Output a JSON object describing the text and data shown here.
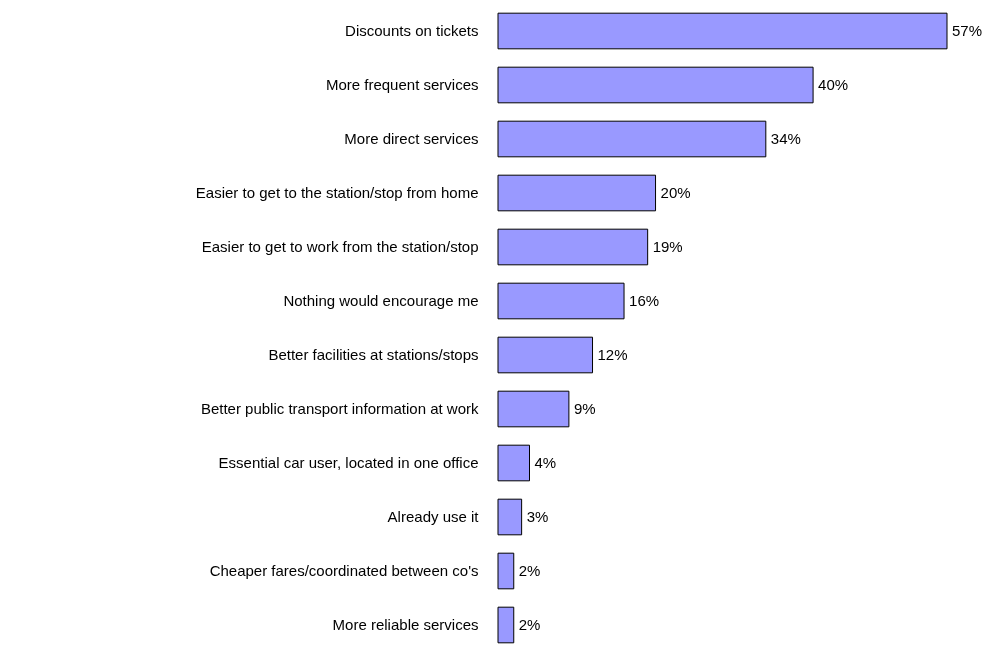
{
  "chart_data": {
    "type": "bar",
    "orientation": "horizontal",
    "categories": [
      "Discounts on tickets",
      "More frequent services",
      "More direct services",
      "Easier to get to the station/stop from home",
      "Easier to get to work from the station/stop",
      "Nothing would encourage me",
      "Better facilities at stations/stops",
      "Better public transport information at work",
      "Essential car user, located in one office",
      "Already use it",
      "Cheaper fares/coordinated between co's",
      "More reliable services"
    ],
    "values": [
      57,
      40,
      34,
      20,
      19,
      16,
      12,
      9,
      4,
      3,
      2,
      2
    ],
    "value_labels": [
      "57%",
      "40%",
      "34%",
      "20%",
      "19%",
      "16%",
      "12%",
      "9%",
      "4%",
      "3%",
      "2%",
      "2%"
    ],
    "color": "#9999ff"
  }
}
